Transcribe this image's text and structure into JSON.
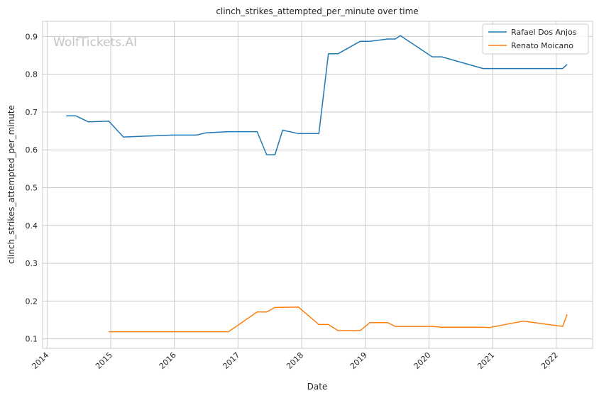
{
  "chart_data": {
    "type": "line",
    "title": "clinch_strikes_attempted_per_minute over time",
    "xlabel": "Date",
    "ylabel": "clinch_strikes_attempted_per_minute",
    "watermark": "WolfTickets.AI",
    "grid": true,
    "legend_position": "top-right",
    "x_ticks": [
      "2014",
      "2015",
      "2016",
      "2017",
      "2018",
      "2019",
      "2020",
      "2021",
      "2022"
    ],
    "y_ticks": [
      "0.1",
      "0.2",
      "0.3",
      "0.4",
      "0.5",
      "0.6",
      "0.7",
      "0.8",
      "0.9"
    ],
    "xlim": [
      2013.93,
      2022.57
    ],
    "ylim": [
      0.075,
      0.94
    ],
    "series": [
      {
        "name": "Rafael Dos Anjos",
        "color": "#1f77b4",
        "points": [
          [
            2014.3,
            0.69
          ],
          [
            2014.45,
            0.69
          ],
          [
            2014.65,
            0.674
          ],
          [
            2014.97,
            0.676
          ],
          [
            2015.2,
            0.634
          ],
          [
            2015.97,
            0.639
          ],
          [
            2016.35,
            0.639
          ],
          [
            2016.5,
            0.645
          ],
          [
            2016.85,
            0.648
          ],
          [
            2017.3,
            0.648
          ],
          [
            2017.45,
            0.587
          ],
          [
            2017.58,
            0.587
          ],
          [
            2017.7,
            0.652
          ],
          [
            2017.95,
            0.643
          ],
          [
            2018.27,
            0.643
          ],
          [
            2018.42,
            0.854
          ],
          [
            2018.57,
            0.854
          ],
          [
            2018.92,
            0.887
          ],
          [
            2019.07,
            0.887
          ],
          [
            2019.35,
            0.893
          ],
          [
            2019.47,
            0.893
          ],
          [
            2019.55,
            0.902
          ],
          [
            2020.05,
            0.846
          ],
          [
            2020.2,
            0.846
          ],
          [
            2020.85,
            0.815
          ],
          [
            2021.4,
            0.815
          ],
          [
            2022.1,
            0.815
          ],
          [
            2022.17,
            0.826
          ]
        ]
      },
      {
        "name": "Renato Moicano",
        "color": "#ff7f0e",
        "points": [
          [
            2014.97,
            0.119
          ],
          [
            2015.2,
            0.119
          ],
          [
            2016.85,
            0.119
          ],
          [
            2017.3,
            0.171
          ],
          [
            2017.45,
            0.171
          ],
          [
            2017.58,
            0.183
          ],
          [
            2017.95,
            0.184
          ],
          [
            2018.27,
            0.138
          ],
          [
            2018.42,
            0.138
          ],
          [
            2018.57,
            0.122
          ],
          [
            2018.92,
            0.122
          ],
          [
            2019.07,
            0.143
          ],
          [
            2019.35,
            0.143
          ],
          [
            2019.47,
            0.133
          ],
          [
            2020.05,
            0.133
          ],
          [
            2020.2,
            0.131
          ],
          [
            2020.85,
            0.131
          ],
          [
            2020.95,
            0.13
          ],
          [
            2021.48,
            0.147
          ],
          [
            2022.1,
            0.133
          ],
          [
            2022.17,
            0.165
          ]
        ]
      }
    ]
  }
}
